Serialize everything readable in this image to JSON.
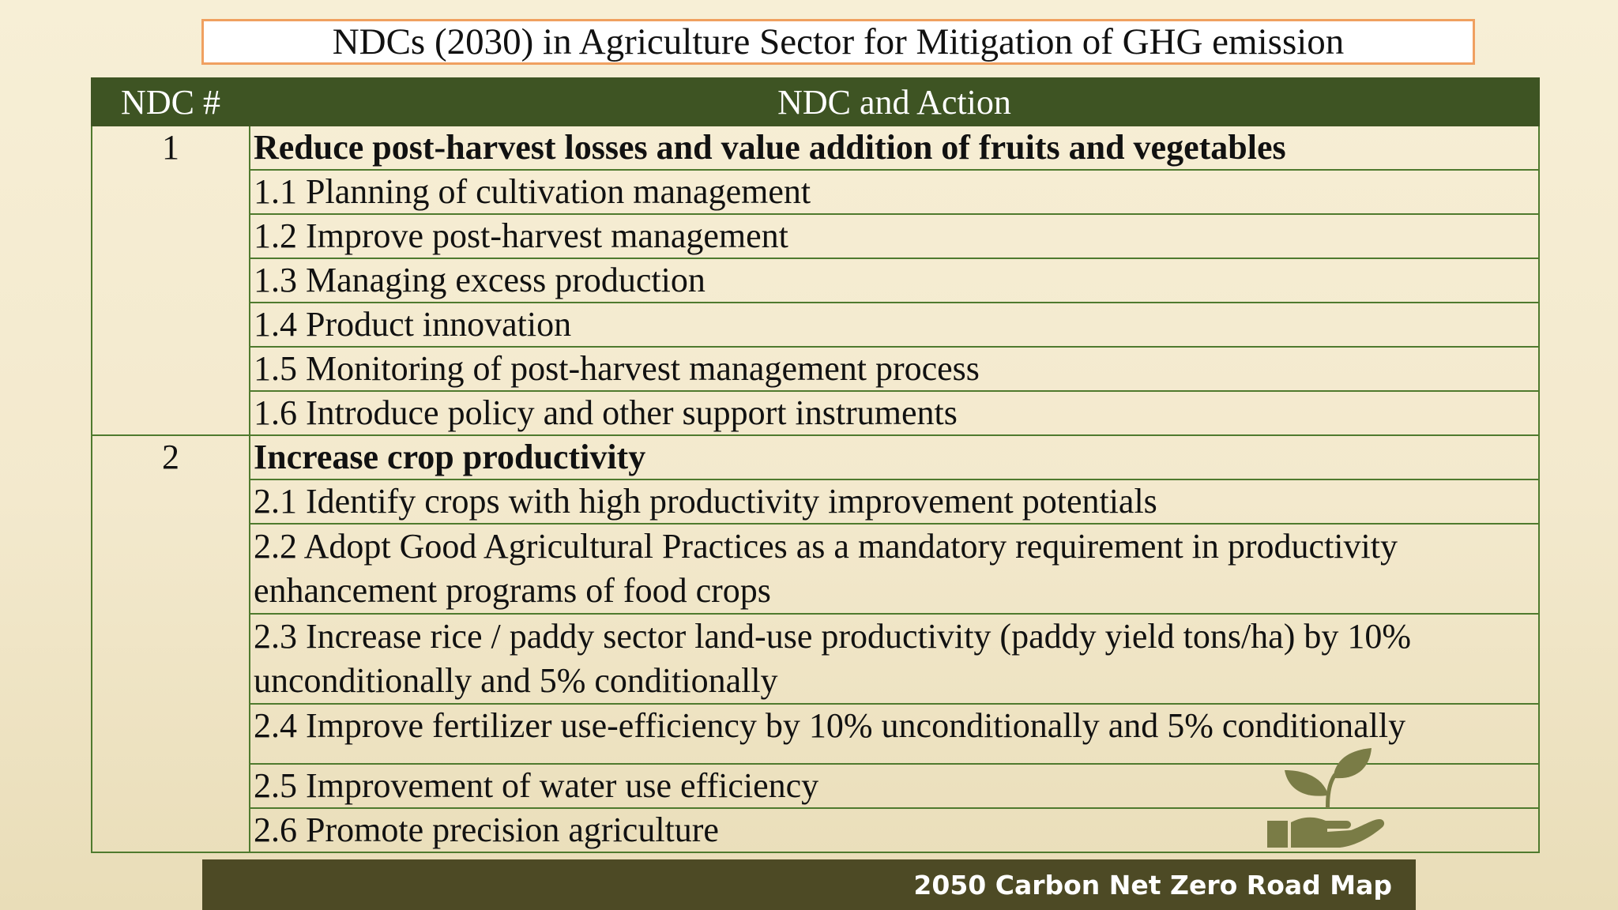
{
  "title": "NDCs (2030) in Agriculture Sector  for Mitigation of GHG emission",
  "table": {
    "headers": {
      "ndc_num": "NDC #",
      "action": "NDC and Action"
    },
    "groups": [
      {
        "number": "1",
        "heading": "Reduce post-harvest losses and value addition of fruits and vegetables",
        "actions": [
          "1.1 Planning of cultivation management",
          "1.2 Improve post-harvest management",
          "1.3 Managing excess production",
          "1.4 Product innovation",
          "1.5 Monitoring of post-harvest management process",
          "1.6 Introduce policy and other support instruments"
        ]
      },
      {
        "number": "2",
        "heading": "Increase crop productivity",
        "actions": [
          "2.1 Identify crops with high productivity improvement potentials",
          "2.2 Adopt Good Agricultural Practices as a mandatory requirement in productivity enhancement programs of food crops",
          "2.3 Increase rice / paddy sector land-use productivity (paddy yield tons/ha) by 10% unconditionally and 5% conditionally",
          "2.4 Improve fertilizer use-efficiency by 10% unconditionally and 5% conditionally",
          "2.5 Improvement of water use efficiency",
          "2.6 Promote precision agriculture"
        ]
      }
    ]
  },
  "footer": {
    "label": "2050 Carbon Net Zero Road Map"
  },
  "logo": {
    "icon": "hand-sprout-icon",
    "color": "#7a7c46"
  }
}
